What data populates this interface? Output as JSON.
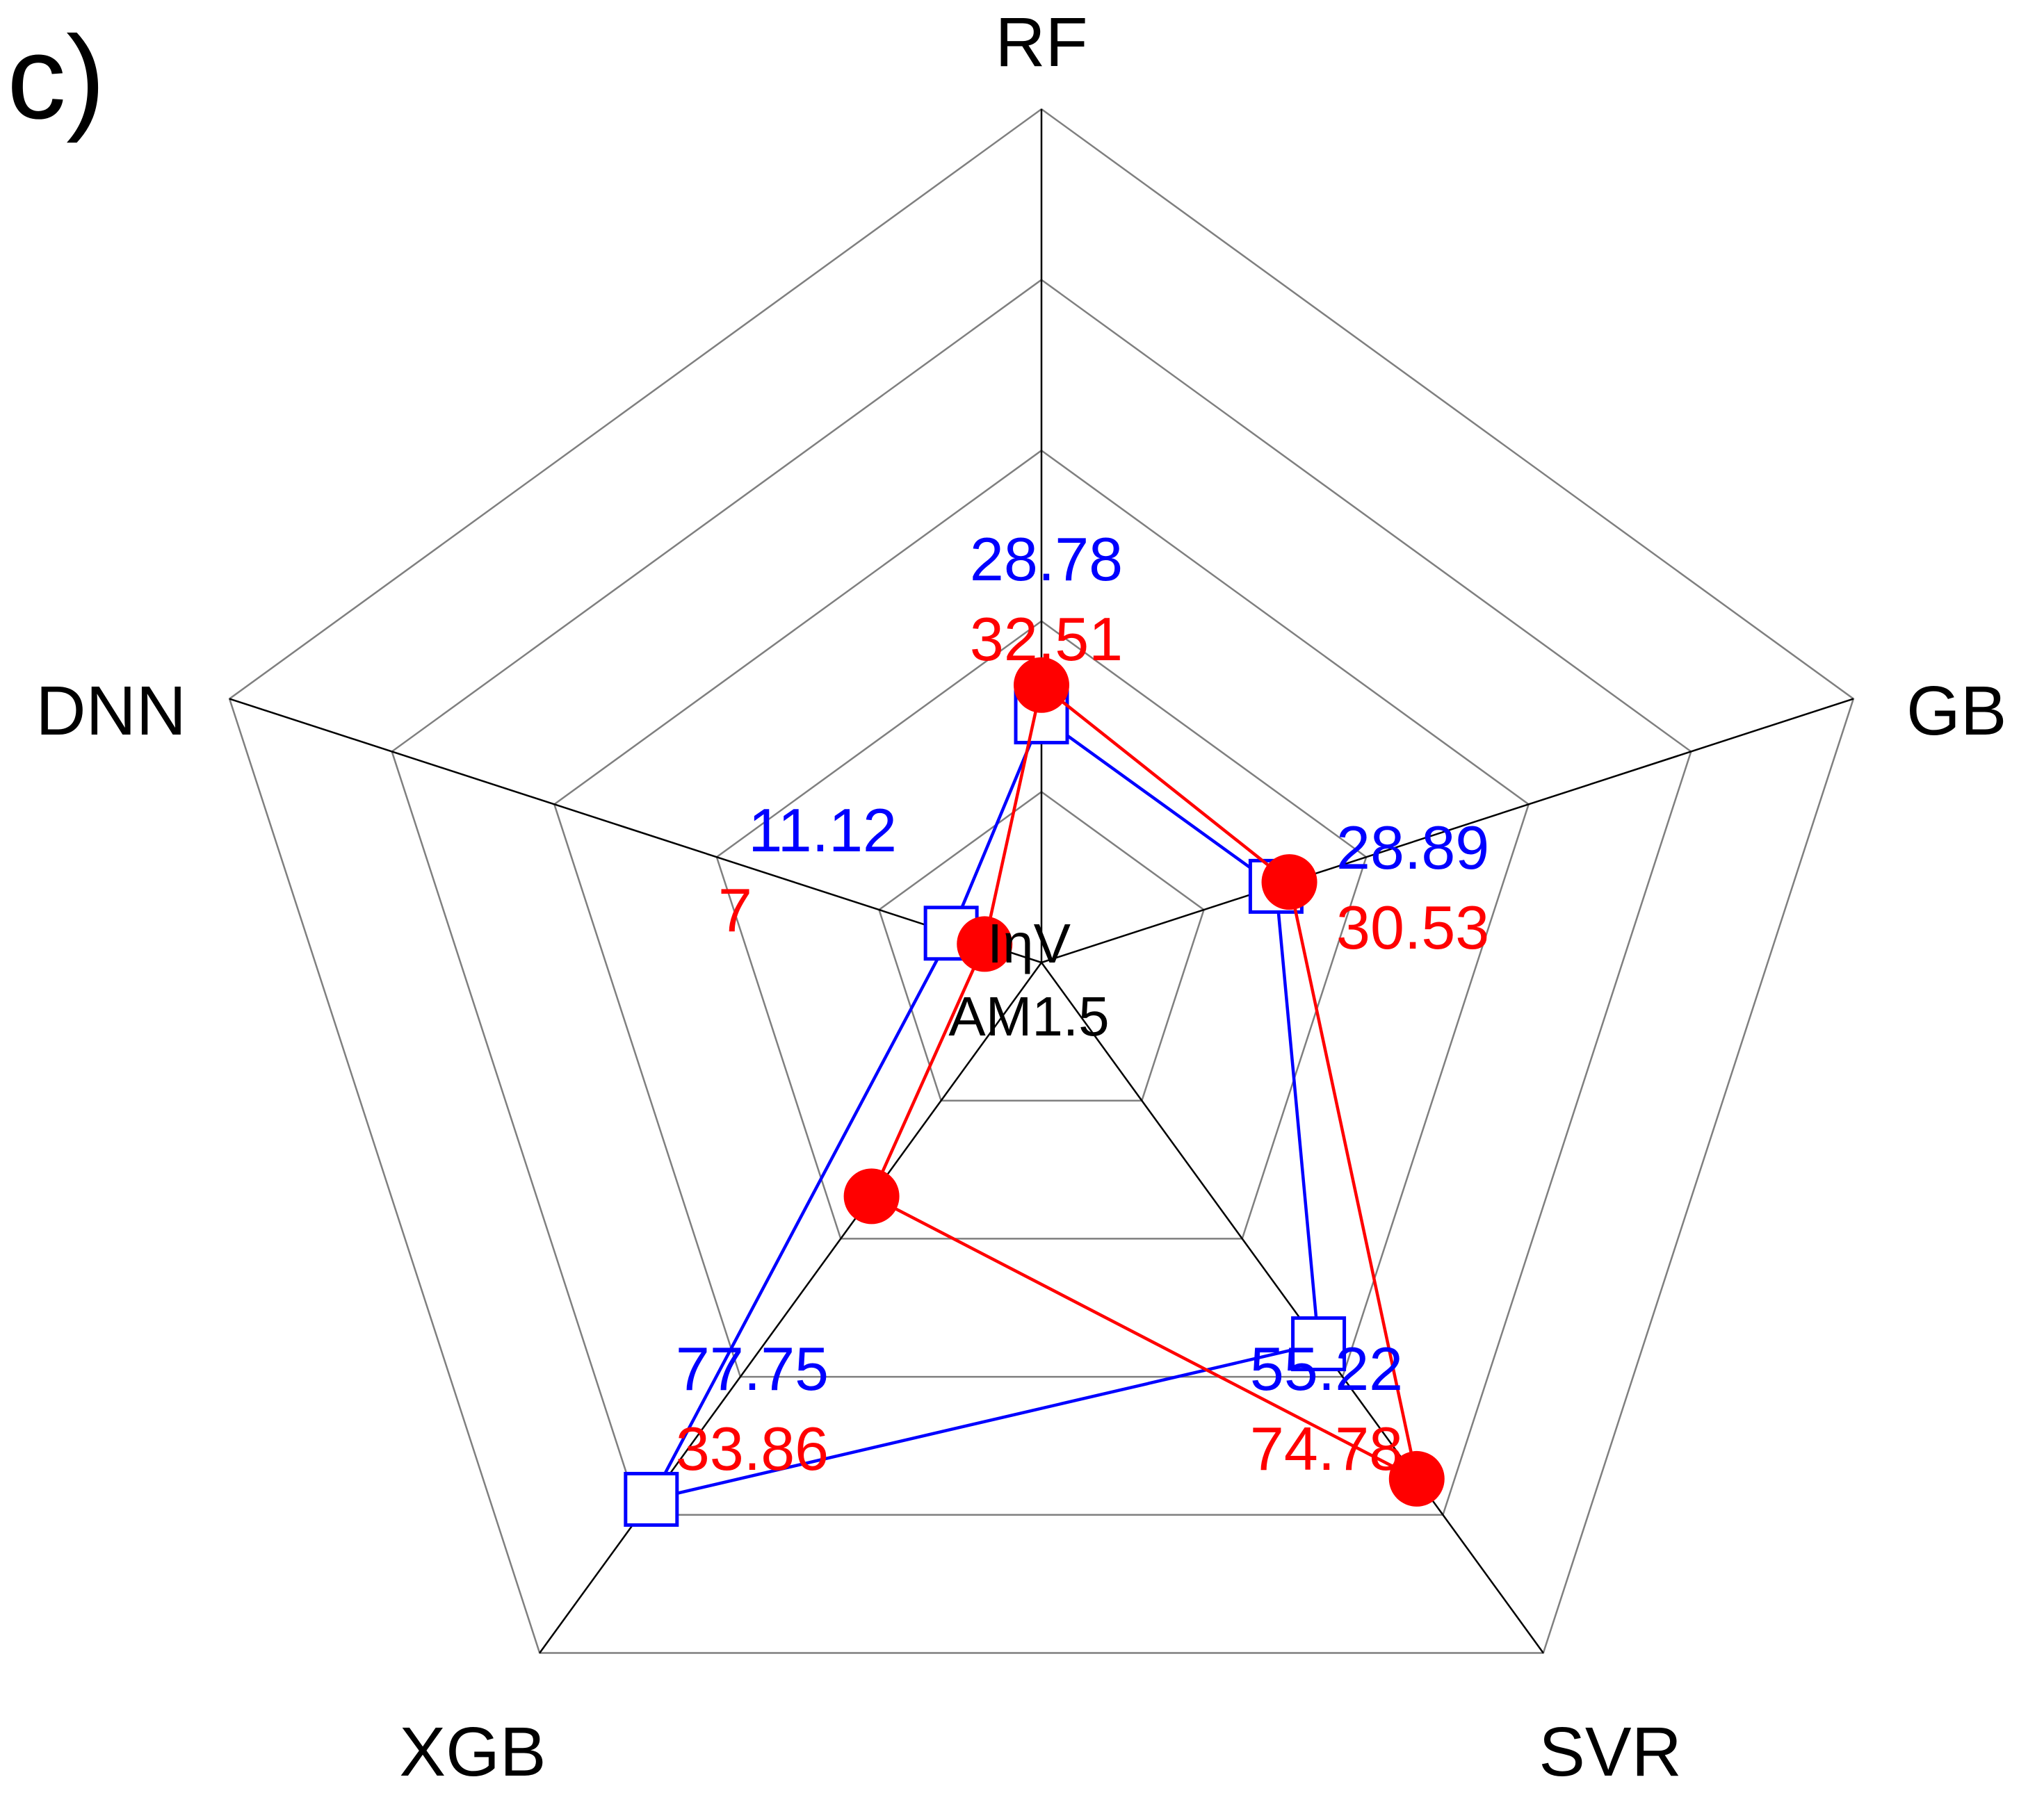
{
  "panel_label": "c)",
  "center_label": {
    "line1": "IηV",
    "line2": "AM1.5"
  },
  "colors": {
    "series_a": "#0000ff",
    "series_b": "#ff0000",
    "axis": "#000000",
    "grid": "#7f7f7f"
  },
  "chart_data": {
    "type": "radar",
    "axes": [
      "RF",
      "GB",
      "SVR",
      "XGB",
      "DNN"
    ],
    "rlim": [
      0,
      100
    ],
    "grid_levels": [
      20,
      40,
      60,
      80,
      100
    ],
    "grid": true,
    "series": [
      {
        "values": [
          28.78,
          28.89,
          55.22,
          77.75,
          11.12
        ],
        "labels": [
          "28.78",
          "28.89",
          "55.22",
          "77.75",
          "11.12"
        ],
        "marker": "open-square",
        "color": "#0000ff"
      },
      {
        "values": [
          32.51,
          30.53,
          74.78,
          33.86,
          7
        ],
        "labels": [
          "32.51",
          "30.53",
          "74.78",
          "33.86",
          "7"
        ],
        "marker": "filled-circle",
        "color": "#ff0000"
      }
    ]
  }
}
